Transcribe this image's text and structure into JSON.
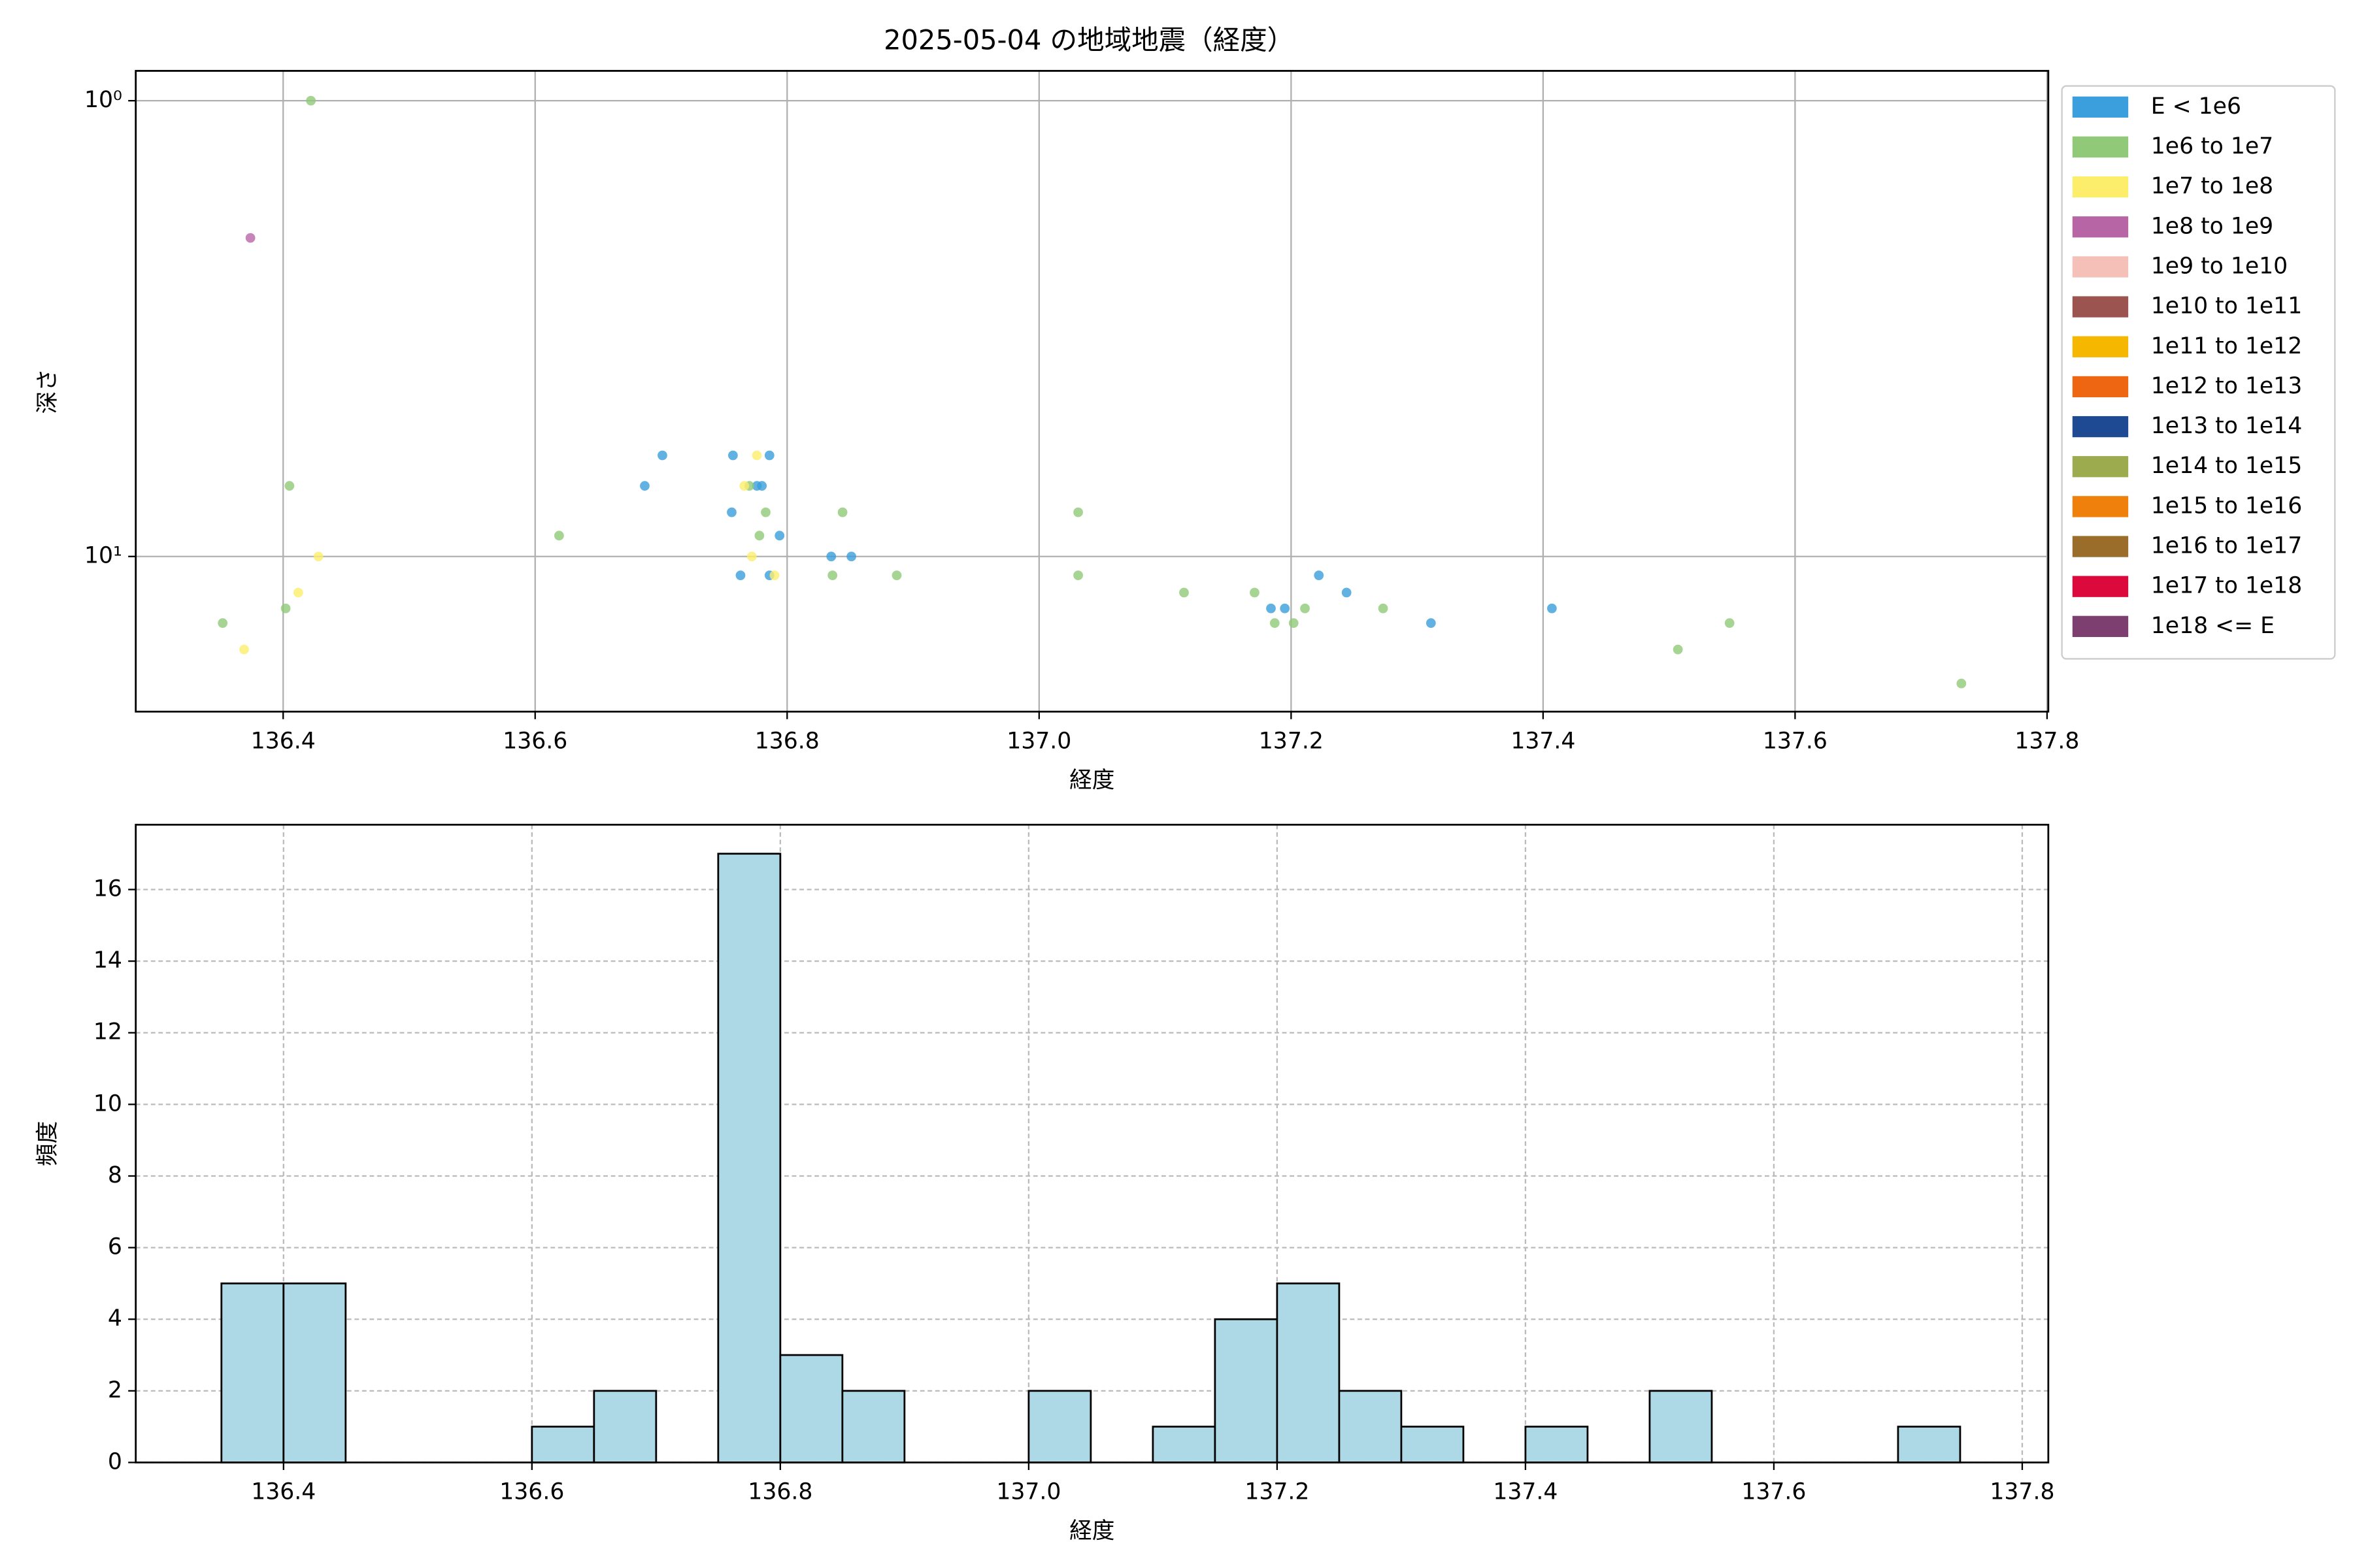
{
  "chart_data": [
    {
      "type": "scatter",
      "title": "2025-05-04 の地域地震（経度）",
      "xlabel": "経度",
      "ylabel": "深さ",
      "yscale": "log",
      "y_inverted": true,
      "grid": true,
      "legend": "outside-right",
      "xlim": [
        136.283,
        137.801
      ],
      "ylim": [
        0.86,
        21.9
      ],
      "xticks": [
        136.4,
        136.6,
        136.8,
        {
          "value": 137,
          "label": "137.0"
        },
        137.2,
        137.4,
        137.6,
        137.8
      ],
      "yticks": [
        {
          "value": 1,
          "label": "10⁰"
        },
        {
          "value": 10,
          "label": "10¹"
        }
      ],
      "series": [
        {
          "name": "E < 1e6",
          "color": "#3a9fdc",
          "x": [
            136.701,
            136.757,
            136.786,
            136.687,
            136.776,
            136.78,
            136.756,
            136.794,
            136.763,
            136.835,
            136.851,
            136.786,
            137.184,
            137.195,
            137.222,
            137.244,
            137.311,
            137.407
          ],
          "y": [
            6,
            6,
            6,
            7,
            7,
            7,
            8,
            9,
            11,
            10,
            10,
            11,
            13,
            13,
            11,
            12,
            14,
            13
          ]
        },
        {
          "name": "1e6 to 1e7",
          "color": "#90c978",
          "x": [
            136.422,
            136.405,
            136.619,
            136.352,
            136.402,
            136.77,
            136.783,
            136.778,
            136.844,
            136.836,
            136.887,
            137.031,
            137.031,
            137.115,
            137.171,
            137.187,
            137.202,
            137.211,
            137.273,
            137.507,
            137.548,
            137.732
          ],
          "y": [
            1,
            7,
            9,
            14,
            13,
            7,
            8,
            9,
            8,
            11,
            11,
            8,
            11,
            12,
            12,
            14,
            14,
            13,
            13,
            16,
            14,
            19
          ]
        },
        {
          "name": "1e7 to 1e8",
          "color": "#fced6b",
          "x": [
            136.776,
            136.428,
            136.412,
            136.369,
            136.772,
            136.79,
            136.766
          ],
          "y": [
            6,
            10,
            12,
            16,
            10,
            11,
            7
          ]
        },
        {
          "name": "1e8 to 1e9",
          "color": "#b865a6",
          "x": [
            136.374
          ],
          "y": [
            2
          ]
        },
        {
          "name": "1e9 to 1e10",
          "color": "#f4c0b8",
          "x": [],
          "y": []
        },
        {
          "name": "1e10 to 1e11",
          "color": "#9b5450",
          "x": [],
          "y": []
        },
        {
          "name": "1e11 to 1e12",
          "color": "#f5b700",
          "x": [],
          "y": []
        },
        {
          "name": "1e12 to 1e13",
          "color": "#ee6611",
          "x": [],
          "y": []
        },
        {
          "name": "1e13 to 1e14",
          "color": "#1e4a94",
          "x": [],
          "y": []
        },
        {
          "name": "1e14 to 1e15",
          "color": "#9bab4e",
          "x": [],
          "y": []
        },
        {
          "name": "1e15 to 1e16",
          "color": "#f0800c",
          "x": [],
          "y": []
        },
        {
          "name": "1e16 to 1e17",
          "color": "#9a6d2a",
          "x": [],
          "y": []
        },
        {
          "name": "1e17 to 1e18",
          "color": "#dc0a3c",
          "x": [],
          "y": []
        },
        {
          "name": "1e18 <= E",
          "color": "#7c3f6f",
          "x": [],
          "y": []
        }
      ]
    },
    {
      "type": "histogram",
      "xlabel": "経度",
      "ylabel": "頻度",
      "grid": true,
      "color": "#add8e6",
      "edgecolor": "#000000",
      "xlim": [
        136.281,
        137.821
      ],
      "ylim": [
        0,
        17.81
      ],
      "xticks": [
        136.4,
        136.6,
        136.8,
        {
          "value": 137,
          "label": "137.0"
        },
        137.2,
        137.4,
        137.6,
        137.8
      ],
      "yticks": [
        0,
        2,
        4,
        6,
        8,
        10,
        12,
        14,
        16
      ],
      "bins": [
        136.35,
        136.4,
        136.45,
        136.5,
        136.55,
        136.6,
        136.65,
        136.7,
        136.75,
        136.8,
        136.85,
        136.9,
        136.95,
        137.0,
        137.05,
        137.1,
        137.15,
        137.2,
        137.25,
        137.3,
        137.35,
        137.4,
        137.45,
        137.5,
        137.55,
        137.6,
        137.65,
        137.7,
        137.75
      ],
      "counts": [
        5,
        5,
        0,
        0,
        0,
        1,
        2,
        0,
        17,
        3,
        2,
        0,
        0,
        2,
        0,
        1,
        4,
        5,
        2,
        1,
        0,
        1,
        0,
        2,
        0,
        0,
        0,
        1
      ]
    }
  ]
}
